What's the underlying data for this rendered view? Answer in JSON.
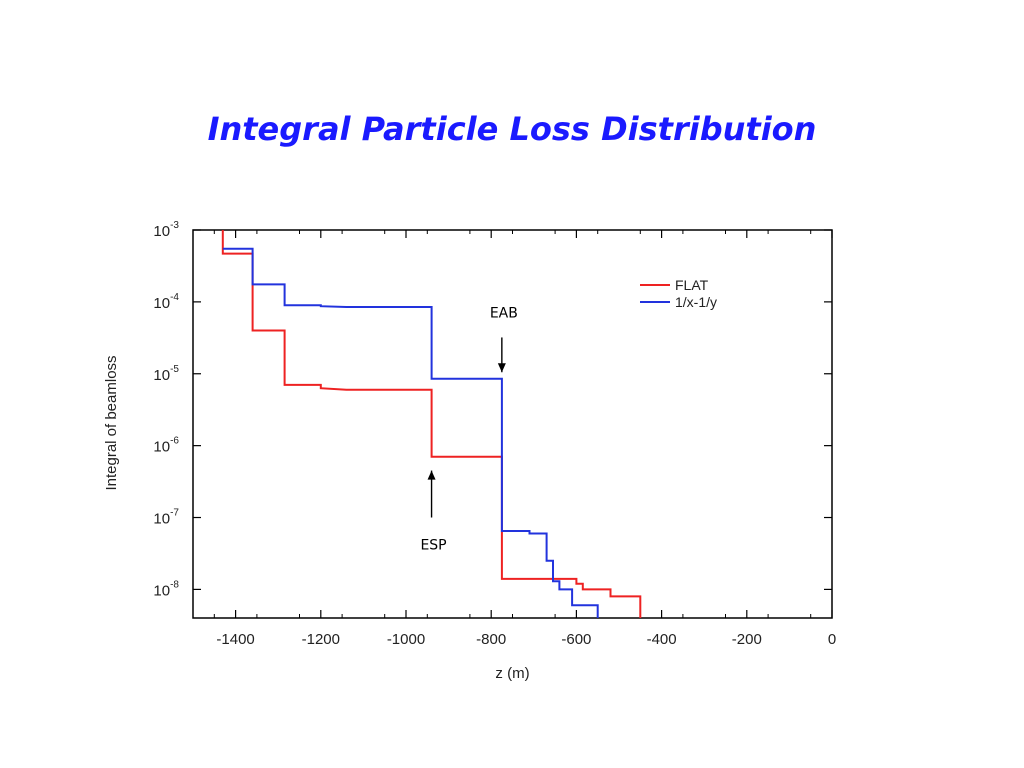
{
  "slide": {
    "title": "Integral Particle Loss Distribution"
  },
  "chart_data": {
    "type": "line",
    "title": "",
    "xlabel": "z (m)",
    "ylabel": "Integral of beamloss",
    "xlim": [
      -1500,
      0
    ],
    "ylim": [
      4e-09,
      0.001
    ],
    "y_scale": "log",
    "x_ticks": [
      -1400,
      -1200,
      -1000,
      -800,
      -600,
      -400,
      -200,
      0
    ],
    "x_tick_labels": [
      "-1400",
      "-1200",
      "-1000",
      "-800",
      "-600",
      "-400",
      "-200",
      "0"
    ],
    "y_ticks": [
      1e-08,
      1e-07,
      1e-06,
      1e-05,
      0.0001,
      0.001
    ],
    "y_tick_labels": [
      {
        "base": "10",
        "exp": "-8"
      },
      {
        "base": "10",
        "exp": "-7"
      },
      {
        "base": "10",
        "exp": "-6"
      },
      {
        "base": "10",
        "exp": "-5"
      },
      {
        "base": "10",
        "exp": "-4"
      },
      {
        "base": "10",
        "exp": "-3"
      }
    ],
    "grid": false,
    "legend_position": "top-right",
    "series": [
      {
        "name": "FLAT",
        "color": "#ee2222",
        "step": true,
        "x": [
          -1430,
          -1430,
          -1360,
          -1360,
          -1285,
          -1285,
          -1200,
          -1200,
          -1140,
          -940,
          -940,
          -775,
          -775,
          -600,
          -600,
          -585,
          -585,
          -520,
          -520,
          -450,
          -450
        ],
        "y": [
          0.001,
          0.00047,
          0.00047,
          4e-05,
          4e-05,
          7e-06,
          7e-06,
          6.3e-06,
          6e-06,
          6e-06,
          7e-07,
          7e-07,
          1.4e-08,
          1.4e-08,
          1.2e-08,
          1.2e-08,
          1e-08,
          1e-08,
          8e-09,
          8e-09,
          4e-09
        ]
      },
      {
        "name": "1/x-1/y",
        "color": "#2233dd",
        "step": true,
        "x": [
          -1430,
          -1360,
          -1360,
          -1285,
          -1285,
          -1200,
          -1200,
          -1140,
          -940,
          -940,
          -775,
          -775,
          -710,
          -710,
          -670,
          -670,
          -655,
          -655,
          -640,
          -640,
          -610,
          -610,
          -550,
          -550
        ],
        "y": [
          0.00055,
          0.00055,
          0.000175,
          0.000175,
          9e-05,
          9e-05,
          8.7e-05,
          8.5e-05,
          8.5e-05,
          8.5e-06,
          8.5e-06,
          6.5e-08,
          6.5e-08,
          6e-08,
          6e-08,
          2.5e-08,
          2.5e-08,
          1.3e-08,
          1.3e-08,
          1e-08,
          1e-08,
          6e-09,
          6e-09,
          4e-09
        ]
      }
    ],
    "annotations": [
      {
        "text": "EAB",
        "arrow_x": -775,
        "arrow_from_y": 3.2e-05,
        "arrow_to_y": 1.05e-05,
        "direction": "down"
      },
      {
        "text": "ESP",
        "arrow_x": -940,
        "arrow_from_y": 1e-07,
        "arrow_to_y": 4.5e-07,
        "direction": "up"
      }
    ]
  }
}
